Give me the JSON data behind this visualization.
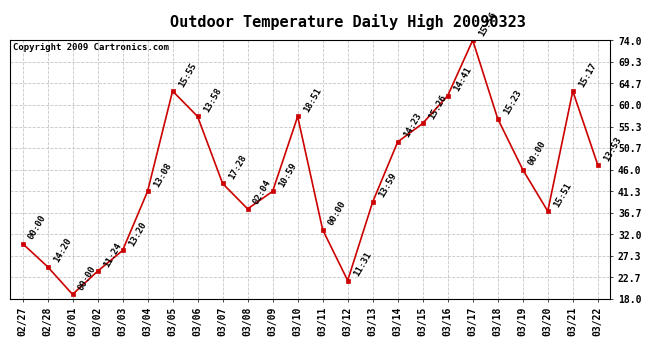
{
  "title": "Outdoor Temperature Daily High 20090323",
  "copyright": "Copyright 2009 Cartronics.com",
  "dates": [
    "02/27",
    "02/28",
    "03/01",
    "03/02",
    "03/03",
    "03/04",
    "03/05",
    "03/06",
    "03/07",
    "03/08",
    "03/09",
    "03/10",
    "03/11",
    "03/12",
    "03/13",
    "03/14",
    "03/15",
    "03/16",
    "03/17",
    "03/18",
    "03/19",
    "03/20",
    "03/21",
    "03/22"
  ],
  "values": [
    30.0,
    25.0,
    19.0,
    24.0,
    28.5,
    41.3,
    63.0,
    57.5,
    43.0,
    37.5,
    41.3,
    57.5,
    33.0,
    22.0,
    39.0,
    52.0,
    56.0,
    62.0,
    74.0,
    57.0,
    46.0,
    37.0,
    63.0,
    47.0
  ],
  "labels": [
    "00:00",
    "14:20",
    "00:00",
    "11:24",
    "13:20",
    "13:08",
    "15:55",
    "13:58",
    "17:28",
    "02:04",
    "10:59",
    "18:51",
    "00:00",
    "11:31",
    "13:59",
    "14:23",
    "15:26",
    "14:41",
    "15:56",
    "15:23",
    "00:00",
    "15:51",
    "15:17",
    "13:53"
  ],
  "ylim": [
    18.0,
    74.0
  ],
  "yticks": [
    18.0,
    22.7,
    27.3,
    32.0,
    36.7,
    41.3,
    46.0,
    50.7,
    55.3,
    60.0,
    64.7,
    69.3,
    74.0
  ],
  "line_color": "#cc0000",
  "marker_color": "#cc0000",
  "bg_color": "#ffffff",
  "plot_bg_color": "#ffffff",
  "grid_color": "#c0c0c0",
  "title_fontsize": 11,
  "label_fontsize": 6.5,
  "tick_fontsize": 7,
  "copyright_fontsize": 6.5
}
